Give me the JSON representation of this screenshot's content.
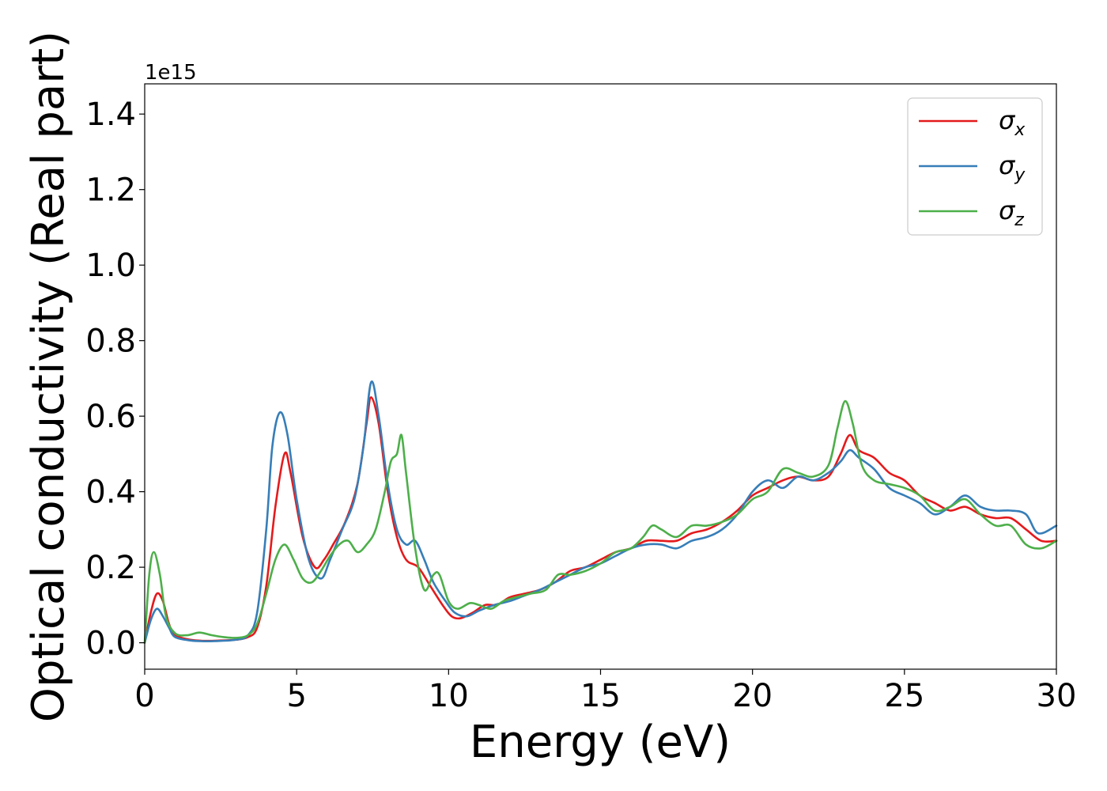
{
  "chart_data": {
    "type": "line",
    "xlabel": "Energy (eV)",
    "ylabel": "Optical conductivity (Real part)",
    "y_offset_label": "1e15",
    "xlim": [
      0,
      30
    ],
    "ylim": [
      -0.07,
      1.48
    ],
    "x_ticks": [
      0,
      5,
      10,
      15,
      20,
      25,
      30
    ],
    "x_tick_labels": [
      "0",
      "5",
      "10",
      "15",
      "20",
      "25",
      "30"
    ],
    "y_ticks": [
      0.0,
      0.2,
      0.4,
      0.6,
      0.8,
      1.0,
      1.2,
      1.4
    ],
    "y_tick_labels": [
      "0.0",
      "0.2",
      "0.4",
      "0.6",
      "0.8",
      "1.0",
      "1.2",
      "1.4"
    ],
    "grid": false,
    "legend_position": "top-right",
    "series": [
      {
        "name": "σx",
        "symbol": "σ",
        "subscript": "x",
        "color": "#e41a1c",
        "points": [
          [
            0,
            0
          ],
          [
            0.2,
            0.08
          ],
          [
            0.4,
            0.13
          ],
          [
            0.6,
            0.11
          ],
          [
            0.8,
            0.05
          ],
          [
            1.0,
            0.02
          ],
          [
            1.5,
            0.008
          ],
          [
            2,
            0.005
          ],
          [
            2.5,
            0.006
          ],
          [
            3,
            0.008
          ],
          [
            3.4,
            0.015
          ],
          [
            3.7,
            0.04
          ],
          [
            4.0,
            0.15
          ],
          [
            4.3,
            0.36
          ],
          [
            4.6,
            0.5
          ],
          [
            4.8,
            0.45
          ],
          [
            5.2,
            0.28
          ],
          [
            5.6,
            0.2
          ],
          [
            5.9,
            0.22
          ],
          [
            6.2,
            0.26
          ],
          [
            6.6,
            0.32
          ],
          [
            7.0,
            0.42
          ],
          [
            7.3,
            0.58
          ],
          [
            7.45,
            0.65
          ],
          [
            7.7,
            0.58
          ],
          [
            8.0,
            0.4
          ],
          [
            8.3,
            0.28
          ],
          [
            8.6,
            0.22
          ],
          [
            9.0,
            0.2
          ],
          [
            9.4,
            0.15
          ],
          [
            9.8,
            0.1
          ],
          [
            10.1,
            0.07
          ],
          [
            10.4,
            0.065
          ],
          [
            10.8,
            0.08
          ],
          [
            11.2,
            0.1
          ],
          [
            11.6,
            0.1
          ],
          [
            12,
            0.12
          ],
          [
            12.5,
            0.13
          ],
          [
            13,
            0.14
          ],
          [
            13.5,
            0.16
          ],
          [
            14,
            0.19
          ],
          [
            14.5,
            0.2
          ],
          [
            15,
            0.22
          ],
          [
            15.5,
            0.24
          ],
          [
            16,
            0.25
          ],
          [
            16.5,
            0.27
          ],
          [
            17,
            0.27
          ],
          [
            17.5,
            0.27
          ],
          [
            18,
            0.29
          ],
          [
            18.5,
            0.3
          ],
          [
            19,
            0.32
          ],
          [
            19.5,
            0.35
          ],
          [
            20,
            0.39
          ],
          [
            20.5,
            0.41
          ],
          [
            21,
            0.43
          ],
          [
            21.5,
            0.44
          ],
          [
            22,
            0.43
          ],
          [
            22.5,
            0.44
          ],
          [
            22.9,
            0.5
          ],
          [
            23.2,
            0.55
          ],
          [
            23.5,
            0.51
          ],
          [
            24,
            0.49
          ],
          [
            24.5,
            0.45
          ],
          [
            25,
            0.43
          ],
          [
            25.5,
            0.39
          ],
          [
            26,
            0.37
          ],
          [
            26.5,
            0.35
          ],
          [
            27,
            0.36
          ],
          [
            27.5,
            0.34
          ],
          [
            28,
            0.33
          ],
          [
            28.5,
            0.33
          ],
          [
            29,
            0.3
          ],
          [
            29.5,
            0.27
          ],
          [
            30,
            0.27
          ]
        ]
      },
      {
        "name": "σy",
        "symbol": "σ",
        "subscript": "y",
        "color": "#377eb8",
        "points": [
          [
            0,
            0
          ],
          [
            0.2,
            0.06
          ],
          [
            0.4,
            0.09
          ],
          [
            0.6,
            0.07
          ],
          [
            0.8,
            0.04
          ],
          [
            1.0,
            0.015
          ],
          [
            1.5,
            0.006
          ],
          [
            2,
            0.004
          ],
          [
            2.5,
            0.005
          ],
          [
            3,
            0.008
          ],
          [
            3.4,
            0.02
          ],
          [
            3.7,
            0.08
          ],
          [
            4.0,
            0.3
          ],
          [
            4.2,
            0.52
          ],
          [
            4.45,
            0.61
          ],
          [
            4.7,
            0.55
          ],
          [
            5.0,
            0.38
          ],
          [
            5.4,
            0.22
          ],
          [
            5.8,
            0.17
          ],
          [
            6.1,
            0.22
          ],
          [
            6.5,
            0.3
          ],
          [
            6.9,
            0.38
          ],
          [
            7.2,
            0.52
          ],
          [
            7.45,
            0.69
          ],
          [
            7.7,
            0.6
          ],
          [
            8.0,
            0.42
          ],
          [
            8.3,
            0.3
          ],
          [
            8.6,
            0.26
          ],
          [
            8.9,
            0.27
          ],
          [
            9.2,
            0.22
          ],
          [
            9.5,
            0.16
          ],
          [
            9.9,
            0.11
          ],
          [
            10.2,
            0.08
          ],
          [
            10.6,
            0.07
          ],
          [
            11,
            0.085
          ],
          [
            11.5,
            0.1
          ],
          [
            12,
            0.11
          ],
          [
            12.5,
            0.125
          ],
          [
            13,
            0.14
          ],
          [
            13.5,
            0.16
          ],
          [
            14,
            0.18
          ],
          [
            14.5,
            0.2
          ],
          [
            15,
            0.21
          ],
          [
            15.5,
            0.23
          ],
          [
            16,
            0.25
          ],
          [
            16.5,
            0.26
          ],
          [
            17,
            0.26
          ],
          [
            17.5,
            0.25
          ],
          [
            18,
            0.27
          ],
          [
            18.5,
            0.28
          ],
          [
            19,
            0.3
          ],
          [
            19.5,
            0.34
          ],
          [
            20,
            0.4
          ],
          [
            20.5,
            0.43
          ],
          [
            21,
            0.41
          ],
          [
            21.5,
            0.44
          ],
          [
            22,
            0.43
          ],
          [
            22.5,
            0.45
          ],
          [
            22.9,
            0.48
          ],
          [
            23.2,
            0.51
          ],
          [
            23.5,
            0.49
          ],
          [
            24,
            0.46
          ],
          [
            24.5,
            0.41
          ],
          [
            25,
            0.39
          ],
          [
            25.5,
            0.37
          ],
          [
            26,
            0.34
          ],
          [
            26.5,
            0.36
          ],
          [
            27,
            0.39
          ],
          [
            27.5,
            0.36
          ],
          [
            28,
            0.35
          ],
          [
            28.5,
            0.35
          ],
          [
            29,
            0.34
          ],
          [
            29.4,
            0.29
          ],
          [
            30,
            0.31
          ]
        ]
      },
      {
        "name": "σz",
        "symbol": "σ",
        "subscript": "z",
        "color": "#4daf4a",
        "points": [
          [
            0,
            0
          ],
          [
            0.15,
            0.18
          ],
          [
            0.3,
            0.24
          ],
          [
            0.5,
            0.18
          ],
          [
            0.7,
            0.07
          ],
          [
            1.0,
            0.025
          ],
          [
            1.4,
            0.02
          ],
          [
            1.8,
            0.027
          ],
          [
            2.2,
            0.02
          ],
          [
            2.6,
            0.015
          ],
          [
            3,
            0.013
          ],
          [
            3.4,
            0.02
          ],
          [
            3.7,
            0.05
          ],
          [
            4.0,
            0.13
          ],
          [
            4.3,
            0.22
          ],
          [
            4.6,
            0.26
          ],
          [
            4.9,
            0.22
          ],
          [
            5.2,
            0.17
          ],
          [
            5.5,
            0.16
          ],
          [
            5.8,
            0.19
          ],
          [
            6.1,
            0.23
          ],
          [
            6.4,
            0.26
          ],
          [
            6.7,
            0.27
          ],
          [
            7.0,
            0.24
          ],
          [
            7.3,
            0.26
          ],
          [
            7.6,
            0.3
          ],
          [
            7.9,
            0.4
          ],
          [
            8.1,
            0.48
          ],
          [
            8.3,
            0.5
          ],
          [
            8.45,
            0.55
          ],
          [
            8.6,
            0.45
          ],
          [
            8.9,
            0.25
          ],
          [
            9.2,
            0.14
          ],
          [
            9.5,
            0.18
          ],
          [
            9.7,
            0.18
          ],
          [
            10.0,
            0.11
          ],
          [
            10.3,
            0.09
          ],
          [
            10.7,
            0.105
          ],
          [
            11.0,
            0.1
          ],
          [
            11.4,
            0.09
          ],
          [
            11.8,
            0.11
          ],
          [
            12.2,
            0.12
          ],
          [
            12.7,
            0.13
          ],
          [
            13.2,
            0.14
          ],
          [
            13.6,
            0.18
          ],
          [
            14,
            0.18
          ],
          [
            14.5,
            0.19
          ],
          [
            15,
            0.21
          ],
          [
            15.5,
            0.24
          ],
          [
            16,
            0.25
          ],
          [
            16.4,
            0.28
          ],
          [
            16.7,
            0.31
          ],
          [
            17,
            0.3
          ],
          [
            17.5,
            0.28
          ],
          [
            18,
            0.31
          ],
          [
            18.5,
            0.31
          ],
          [
            19,
            0.32
          ],
          [
            19.5,
            0.34
          ],
          [
            20,
            0.38
          ],
          [
            20.5,
            0.4
          ],
          [
            21,
            0.46
          ],
          [
            21.5,
            0.45
          ],
          [
            22,
            0.44
          ],
          [
            22.5,
            0.47
          ],
          [
            22.8,
            0.57
          ],
          [
            23.05,
            0.64
          ],
          [
            23.3,
            0.58
          ],
          [
            23.6,
            0.47
          ],
          [
            24,
            0.43
          ],
          [
            24.5,
            0.42
          ],
          [
            25,
            0.41
          ],
          [
            25.5,
            0.39
          ],
          [
            26,
            0.35
          ],
          [
            26.5,
            0.36
          ],
          [
            27,
            0.38
          ],
          [
            27.5,
            0.34
          ],
          [
            28,
            0.31
          ],
          [
            28.5,
            0.31
          ],
          [
            29,
            0.26
          ],
          [
            29.5,
            0.25
          ],
          [
            30,
            0.27
          ]
        ]
      }
    ]
  }
}
